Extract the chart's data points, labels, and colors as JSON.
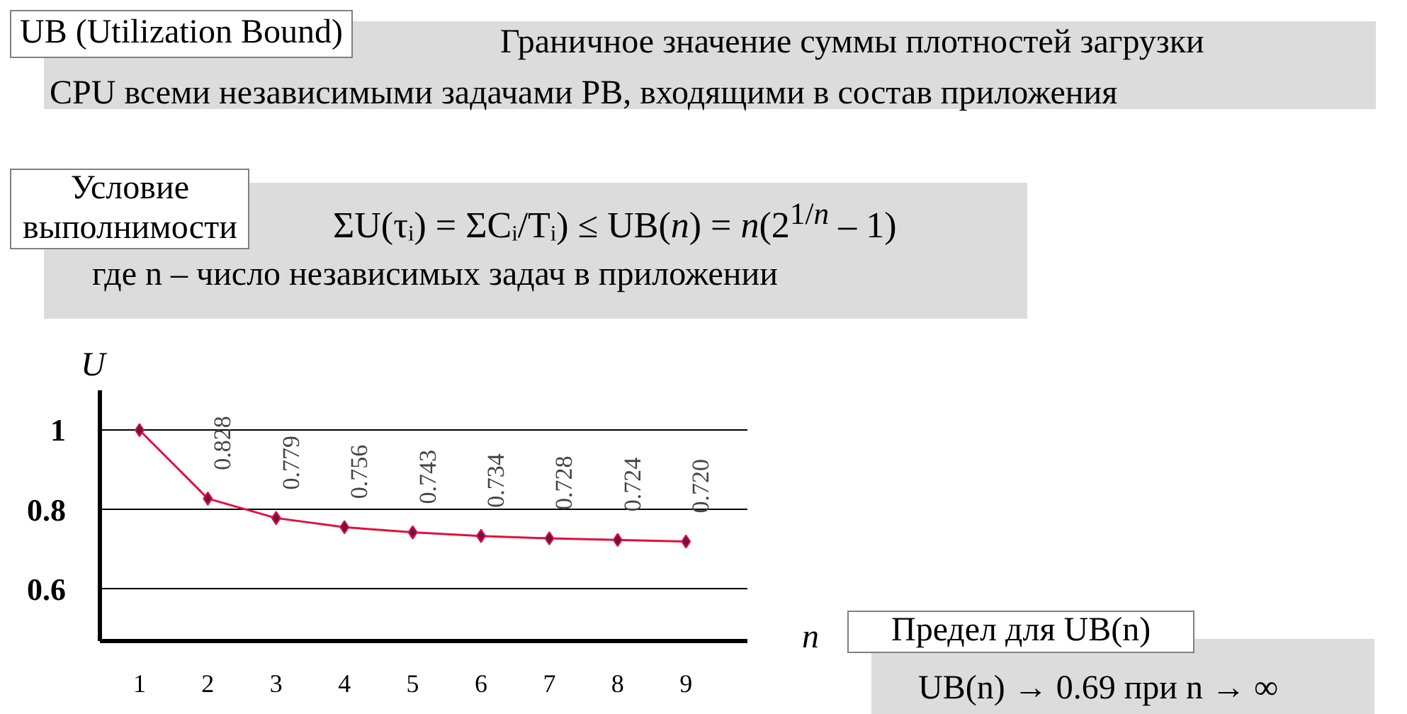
{
  "chart_data": {
    "type": "line",
    "title": "UB (Utilization Bound)",
    "subtitle": "Граничное значение суммы плотностей загрузки CPU всеми независимыми задачами РВ, входящими в состав приложения",
    "annotations": [
      "Условие выполнимости",
      "ΣU(τᵢ) = ΣCᵢ/Tᵢ) ≤ UB(n) = n(2$^{1/n}$ – 1)",
      "где n – число независимых задач в приложении",
      "Предел для UB(n)",
      "UB(n) → 0.69 при n → ∞"
    ],
    "xlabel": "n",
    "ylabel": "U",
    "x": [
      1,
      2,
      3,
      4,
      5,
      6,
      7,
      8,
      9
    ],
    "series": [
      {
        "color": "#e0103c",
        "values": [
          1,
          0.828,
          0.779,
          0.756,
          0.743,
          0.734,
          0.728,
          0.724,
          0.72
        ],
        "value_labels": [
          null,
          "0.828",
          "0.779",
          "0.756",
          "0.743",
          "0.734",
          "0.728",
          "0.724",
          "0.720"
        ]
      }
    ],
    "xlim": [
      0.42,
      9.9
    ],
    "ylim": [
      0.47,
      1.1
    ],
    "xticks": [
      1,
      2,
      3,
      4,
      5,
      6,
      7,
      8,
      9
    ],
    "yticks": [
      0.6,
      0.8,
      1
    ],
    "grid": "y",
    "marker": "diamond",
    "line_style": "solid"
  }
}
